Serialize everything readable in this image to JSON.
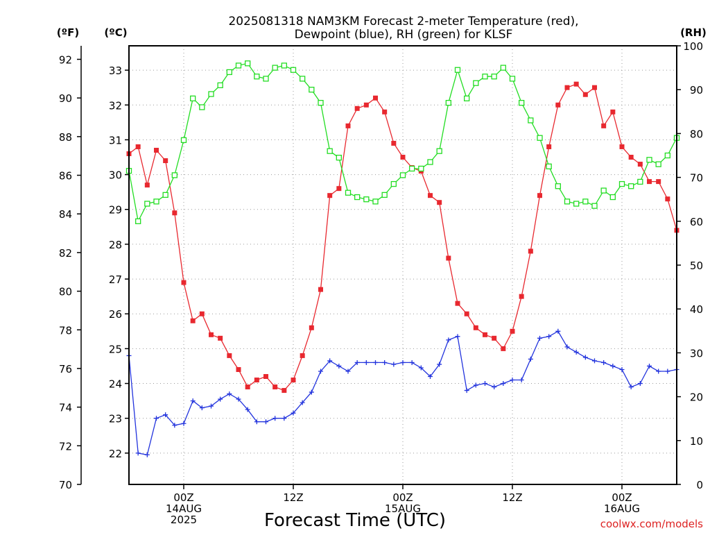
{
  "chart_data": {
    "type": "line",
    "title": [
      "2025081318 NAM3KM Forecast 2-meter Temperature (red),",
      "Dewpoint (blue), RH (green) for KLSF"
    ],
    "xlabel": "Forecast Time (UTC)",
    "credit": "coolwx.com/models",
    "units": {
      "fahrenheit": "(ºF)",
      "celsius": "(ºC)",
      "rh": "(RH)"
    },
    "x_axis": {
      "unit": "forecast hour",
      "range": [
        0,
        60
      ],
      "ticks": [
        {
          "x": 6,
          "lines": [
            "00Z",
            "14AUG",
            "2025"
          ]
        },
        {
          "x": 18,
          "lines": [
            "12Z"
          ]
        },
        {
          "x": 30,
          "lines": [
            "00Z",
            "15AUG"
          ]
        },
        {
          "x": 42,
          "lines": [
            "12Z"
          ]
        },
        {
          "x": 54,
          "lines": [
            "00Z",
            "16AUG"
          ]
        }
      ]
    },
    "y_left_f": {
      "range": [
        70,
        92.7
      ],
      "ticks": [
        70,
        72,
        74,
        76,
        78,
        80,
        82,
        84,
        86,
        88,
        90,
        92
      ]
    },
    "y_left_c": {
      "range": [
        21.1,
        33.7
      ],
      "ticks": [
        22,
        23,
        24,
        25,
        26,
        27,
        28,
        29,
        30,
        31,
        32,
        33
      ]
    },
    "y_right_rh": {
      "range": [
        0,
        100
      ],
      "ticks": [
        0,
        10,
        20,
        30,
        40,
        50,
        60,
        70,
        80,
        90,
        100
      ]
    },
    "grid": true,
    "series": [
      {
        "name": "2-meter Temperature",
        "color": "#e8282f",
        "marker": "square-filled",
        "axis": "celsius",
        "x": [
          0,
          1,
          2,
          3,
          4,
          5,
          6,
          7,
          8,
          9,
          10,
          11,
          12,
          13,
          14,
          15,
          16,
          17,
          18,
          19,
          20,
          21,
          22,
          23,
          24,
          25,
          26,
          27,
          28,
          29,
          30,
          31,
          32,
          33,
          34,
          35,
          36,
          37,
          38,
          39,
          40,
          41,
          42,
          43,
          44,
          45,
          46,
          47,
          48,
          49,
          50,
          51,
          52,
          53,
          54,
          55,
          56,
          57,
          58,
          59,
          60
        ],
        "values": [
          30.6,
          30.8,
          29.7,
          30.7,
          30.4,
          28.9,
          26.9,
          25.8,
          26.0,
          25.4,
          25.3,
          24.8,
          24.4,
          23.9,
          24.1,
          24.2,
          23.9,
          23.8,
          24.1,
          24.8,
          25.6,
          26.7,
          29.4,
          29.6,
          31.4,
          31.9,
          32.0,
          32.2,
          31.8,
          30.9,
          30.5,
          30.2,
          30.1,
          29.4,
          29.2,
          27.6,
          26.3,
          26.0,
          25.6,
          25.4,
          25.3,
          25.0,
          25.5,
          26.5,
          27.8,
          29.4,
          30.8,
          32.0,
          32.5,
          32.6,
          32.3,
          32.5,
          31.4,
          31.8,
          30.8,
          30.5,
          30.3,
          29.8,
          29.8,
          29.3,
          28.4
        ]
      },
      {
        "name": "Dewpoint",
        "color": "#2233dd",
        "marker": "plus",
        "axis": "celsius",
        "x": [
          0,
          1,
          2,
          3,
          4,
          5,
          6,
          7,
          8,
          9,
          10,
          11,
          12,
          13,
          14,
          15,
          16,
          17,
          18,
          19,
          20,
          21,
          22,
          23,
          24,
          25,
          26,
          27,
          28,
          29,
          30,
          31,
          32,
          33,
          34,
          35,
          36,
          37,
          38,
          39,
          40,
          41,
          42,
          43,
          44,
          45,
          46,
          47,
          48,
          49,
          50,
          51,
          52,
          53,
          54,
          55,
          56,
          57,
          58,
          59,
          60
        ],
        "values": [
          24.8,
          22.0,
          21.95,
          23.0,
          23.1,
          22.8,
          22.85,
          23.5,
          23.3,
          23.35,
          23.55,
          23.7,
          23.55,
          23.25,
          22.9,
          22.9,
          23.0,
          23.0,
          23.15,
          23.45,
          23.75,
          24.35,
          24.65,
          24.5,
          24.35,
          24.6,
          24.6,
          24.6,
          24.6,
          24.55,
          24.6,
          24.6,
          24.45,
          24.2,
          24.55,
          25.25,
          25.35,
          23.8,
          23.95,
          24.0,
          23.9,
          24.0,
          24.1,
          24.1,
          24.7,
          25.3,
          25.35,
          25.5,
          25.05,
          24.9,
          24.75,
          24.65,
          24.6,
          24.5,
          24.4,
          23.9,
          24.0,
          24.5,
          24.35,
          24.35,
          24.4
        ]
      },
      {
        "name": "RH",
        "color": "#22dd22",
        "marker": "square-open",
        "axis": "rh",
        "x": [
          0,
          1,
          2,
          3,
          4,
          5,
          6,
          7,
          8,
          9,
          10,
          11,
          12,
          13,
          14,
          15,
          16,
          17,
          18,
          19,
          20,
          21,
          22,
          23,
          24,
          25,
          26,
          27,
          28,
          29,
          30,
          31,
          32,
          33,
          34,
          35,
          36,
          37,
          38,
          39,
          40,
          41,
          42,
          43,
          44,
          45,
          46,
          47,
          48,
          49,
          50,
          51,
          52,
          53,
          54,
          55,
          56,
          57,
          58,
          59,
          60
        ],
        "values": [
          71.5,
          60,
          64,
          64.5,
          66,
          70.5,
          78.5,
          88,
          86,
          89,
          91,
          94,
          95.5,
          96,
          93,
          92.5,
          95,
          95.5,
          94.5,
          92.5,
          90,
          87,
          76,
          74.5,
          66.5,
          65.5,
          65,
          64.5,
          66,
          68.5,
          70.5,
          72,
          72,
          73.5,
          76,
          87,
          94.5,
          88,
          91.5,
          93,
          93,
          95,
          92.5,
          87,
          83,
          79,
          72.5,
          68,
          64.5,
          64,
          64.5,
          63.5,
          67,
          65.5,
          68.5,
          68,
          69,
          74,
          73,
          75,
          79
        ]
      }
    ]
  }
}
